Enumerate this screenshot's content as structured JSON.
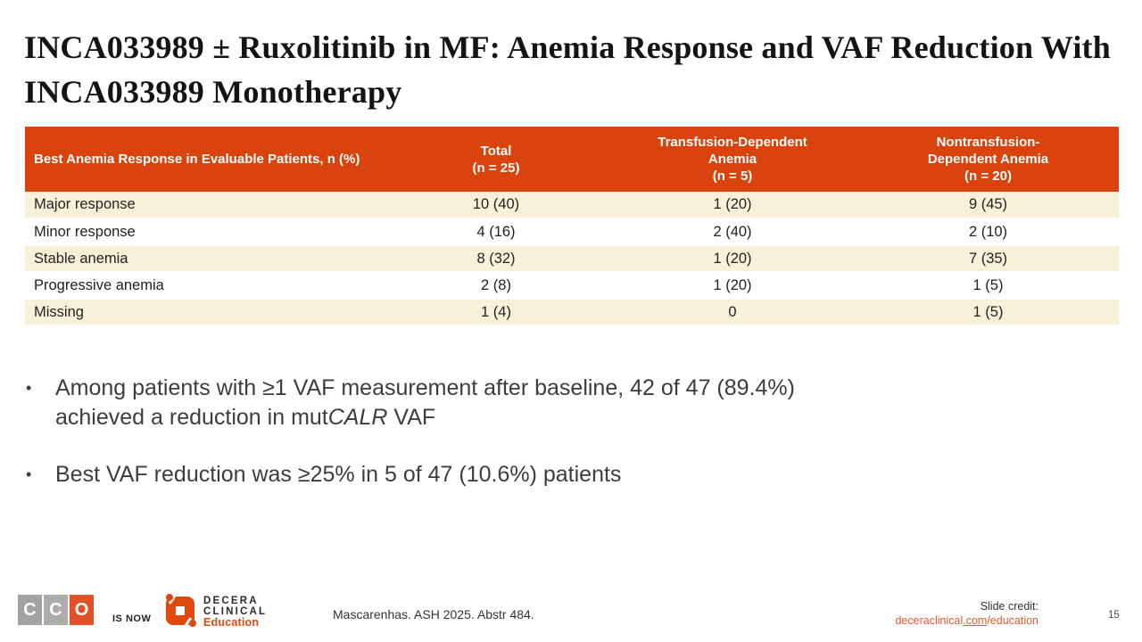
{
  "title": {
    "text": "INCA033989 ± Ruxolitinib in MF: Anemia Response and VAF Reduction With INCA033989 Monotherapy"
  },
  "table": {
    "headers": {
      "response": "Best Anemia Response in Evaluable Patients, n (%)",
      "total_l1": "Total",
      "total_l2": "(n = 25)",
      "td_l1": "Transfusion-Dependent",
      "td_l2": "Anemia",
      "td_l3": "(n = 5)",
      "ntd_l1": "Nontransfusion-",
      "ntd_l2": "Dependent Anemia",
      "ntd_l3": "(n = 20)"
    },
    "rows": [
      {
        "label": "Major response",
        "total": "10 (40)",
        "td": "1 (20)",
        "ntd": "9 (45)"
      },
      {
        "label": "Minor response",
        "total": "4 (16)",
        "td": "2 (40)",
        "ntd": "2 (10)"
      },
      {
        "label": "Stable anemia",
        "total": "8 (32)",
        "td": "1 (20)",
        "ntd": "7 (35)"
      },
      {
        "label": "Progressive anemia",
        "total": "2 (8)",
        "td": "1 (20)",
        "ntd": "1 (5)"
      },
      {
        "label": "Missing",
        "total": "1 (4)",
        "td": "0",
        "ntd": "1 (5)"
      }
    ]
  },
  "bullets": {
    "marker": "•",
    "b1_line1": "Among patients with ≥1 VAF measurement after baseline, 42 of 47 (89.4%)",
    "b1_line2_pre": "achieved a reduction in mut",
    "b1_italic": "CALR",
    "b1_suffix": " VAF",
    "b2": "Best VAF reduction was ≥25% in 5 of 47 (10.6%) patients"
  },
  "footer": {
    "cco_c1": "C",
    "cco_c2": "C",
    "cco_o": "O",
    "is_now": "IS NOW",
    "decera_l1": "DECERA",
    "decera_l2": "CLINICAL",
    "decera_l3": "Education",
    "citation": "Mascarenhas. ASH 2025. Abstr 484.",
    "slide_credit_label": "Slide credit:",
    "link_prefix": "deceraclinical",
    "link_underlined": ".com",
    "link_suffix": "/education",
    "page_number": "15"
  },
  "colors": {
    "table_header_orange": "#D9430E",
    "row_cream": "#F7F1D9",
    "logo_orange": "#E0490E",
    "link_orange": "#E4572E",
    "cco_gray": "#A2A2A1"
  }
}
